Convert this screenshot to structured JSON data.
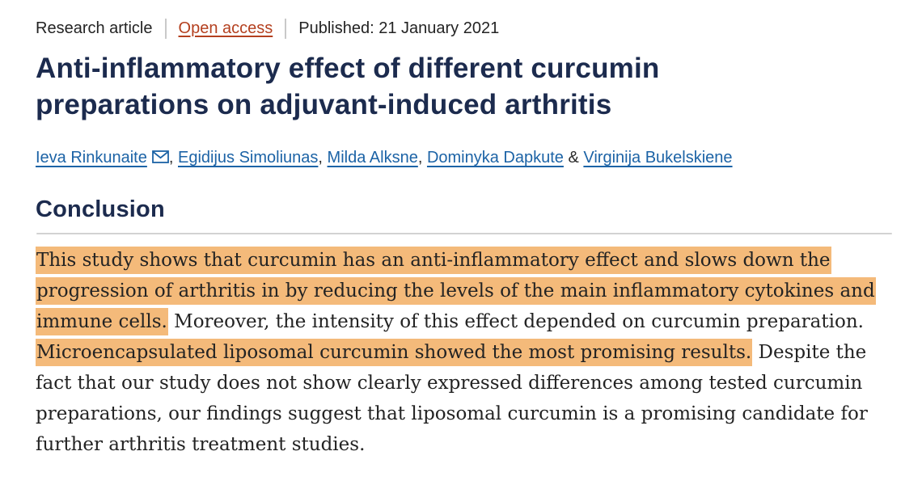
{
  "meta": {
    "article_type": "Research article",
    "access_label": "Open access",
    "published_label": "Published: 21 January 2021"
  },
  "title": "Anti-inflammatory effect of different curcumin preparations on adjuvant-induced arthritis",
  "authors": {
    "separator": ", ",
    "last_separator": " & ",
    "items": [
      {
        "name": "Ieva Rinkunaite",
        "has_email_icon": true
      },
      {
        "name": "Egidijus Simoliunas",
        "has_email_icon": false
      },
      {
        "name": "Milda Alksne",
        "has_email_icon": false
      },
      {
        "name": "Dominyka Dapkute",
        "has_email_icon": false
      },
      {
        "name": "Virginija Bukelskiene",
        "has_email_icon": false
      }
    ]
  },
  "conclusion": {
    "heading": "Conclusion",
    "segments": [
      {
        "text": "This study shows that curcumin has an anti-inflammatory effect and slows down the progression of arthritis in by reducing the levels of the main inflammatory cytokines and immune cells.",
        "highlight": true
      },
      {
        "text": " Moreover, the intensity of this effect depended on curcumin preparation. ",
        "highlight": false
      },
      {
        "text": "Microencapsulated liposomal curcumin showed the most promising results.",
        "highlight": true
      },
      {
        "text": " Despite the fact that our study does not show clearly expressed differences among tested curcumin preparations, our findings suggest that liposomal curcumin is a promising candidate for further arthritis treatment studies.",
        "highlight": false
      }
    ]
  },
  "colors": {
    "title_navy": "#1c2b4e",
    "link_blue": "#1c63a6",
    "open_access_red": "#b4401f",
    "highlight_orange": "#f4ba7a",
    "body_text": "#232323",
    "divider_gray": "#c9c9c9",
    "rule_gray": "#d2d2d2"
  }
}
